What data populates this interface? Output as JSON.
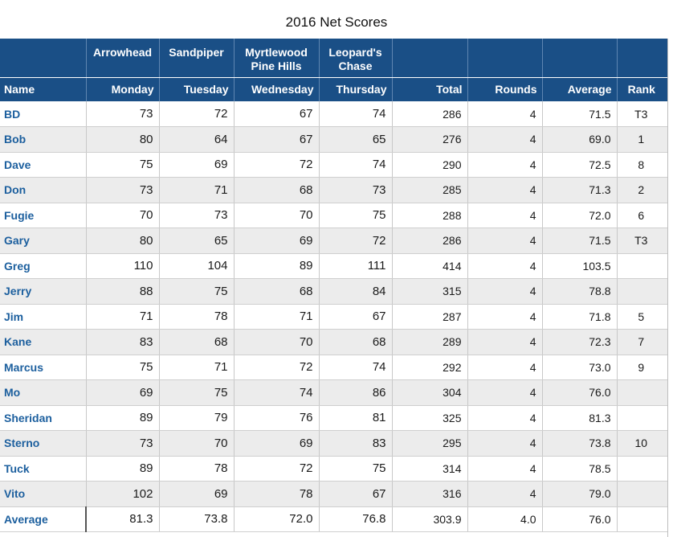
{
  "title": "2016 Net Scores",
  "courses": [
    "Arrowhead",
    "Sandpiper",
    "Myrtlewood Pine Hills",
    "Leopard's Chase"
  ],
  "course_lines": [
    [
      "Arrowhead"
    ],
    [
      "Sandpiper"
    ],
    [
      "Myrtlewood",
      "Pine Hills"
    ],
    [
      "Leopard's",
      "Chase"
    ]
  ],
  "columns": [
    "Name",
    "Monday",
    "Tuesday",
    "Wednesday",
    "Thursday",
    "Total",
    "Rounds",
    "Average",
    "Rank"
  ],
  "rows": [
    {
      "name": "BD",
      "mon": "73",
      "tue": "72",
      "wed": "67",
      "thu": "74",
      "total": "286",
      "rounds": "4",
      "avg": "71.5",
      "rank": "T3"
    },
    {
      "name": "Bob",
      "mon": "80",
      "tue": "64",
      "wed": "67",
      "thu": "65",
      "total": "276",
      "rounds": "4",
      "avg": "69.0",
      "rank": "1"
    },
    {
      "name": "Dave",
      "mon": "75",
      "tue": "69",
      "wed": "72",
      "thu": "74",
      "total": "290",
      "rounds": "4",
      "avg": "72.5",
      "rank": "8"
    },
    {
      "name": "Don",
      "mon": "73",
      "tue": "71",
      "wed": "68",
      "thu": "73",
      "total": "285",
      "rounds": "4",
      "avg": "71.3",
      "rank": "2"
    },
    {
      "name": "Fugie",
      "mon": "70",
      "tue": "73",
      "wed": "70",
      "thu": "75",
      "total": "288",
      "rounds": "4",
      "avg": "72.0",
      "rank": "6"
    },
    {
      "name": "Gary",
      "mon": "80",
      "tue": "65",
      "wed": "69",
      "thu": "72",
      "total": "286",
      "rounds": "4",
      "avg": "71.5",
      "rank": "T3"
    },
    {
      "name": "Greg",
      "mon": "110",
      "tue": "104",
      "wed": "89",
      "thu": "111",
      "total": "414",
      "rounds": "4",
      "avg": "103.5",
      "rank": ""
    },
    {
      "name": "Jerry",
      "mon": "88",
      "tue": "75",
      "wed": "68",
      "thu": "84",
      "total": "315",
      "rounds": "4",
      "avg": "78.8",
      "rank": ""
    },
    {
      "name": "Jim",
      "mon": "71",
      "tue": "78",
      "wed": "71",
      "thu": "67",
      "total": "287",
      "rounds": "4",
      "avg": "71.8",
      "rank": "5"
    },
    {
      "name": "Kane",
      "mon": "83",
      "tue": "68",
      "wed": "70",
      "thu": "68",
      "total": "289",
      "rounds": "4",
      "avg": "72.3",
      "rank": "7"
    },
    {
      "name": "Marcus",
      "mon": "75",
      "tue": "71",
      "wed": "72",
      "thu": "74",
      "total": "292",
      "rounds": "4",
      "avg": "73.0",
      "rank": "9"
    },
    {
      "name": "Mo",
      "mon": "69",
      "tue": "75",
      "wed": "74",
      "thu": "86",
      "total": "304",
      "rounds": "4",
      "avg": "76.0",
      "rank": ""
    },
    {
      "name": "Sheridan",
      "mon": "89",
      "tue": "79",
      "wed": "76",
      "thu": "81",
      "total": "325",
      "rounds": "4",
      "avg": "81.3",
      "rank": ""
    },
    {
      "name": "Sterno",
      "mon": "73",
      "tue": "70",
      "wed": "69",
      "thu": "83",
      "total": "295",
      "rounds": "4",
      "avg": "73.8",
      "rank": "10"
    },
    {
      "name": "Tuck",
      "mon": "89",
      "tue": "78",
      "wed": "72",
      "thu": "75",
      "total": "314",
      "rounds": "4",
      "avg": "78.5",
      "rank": ""
    },
    {
      "name": "Vito",
      "mon": "102",
      "tue": "69",
      "wed": "78",
      "thu": "67",
      "total": "316",
      "rounds": "4",
      "avg": "79.0",
      "rank": ""
    }
  ],
  "average_row": {
    "name": "Average",
    "mon": "81.3",
    "tue": "73.8",
    "wed": "72.0",
    "thu": "76.8",
    "total": "303.9",
    "rounds": "4.0",
    "avg": "76.0",
    "rank": ""
  },
  "colors": {
    "header_bg": "#1a4f86",
    "name_text": "#1c5f9e",
    "stripe": "#ececec"
  }
}
